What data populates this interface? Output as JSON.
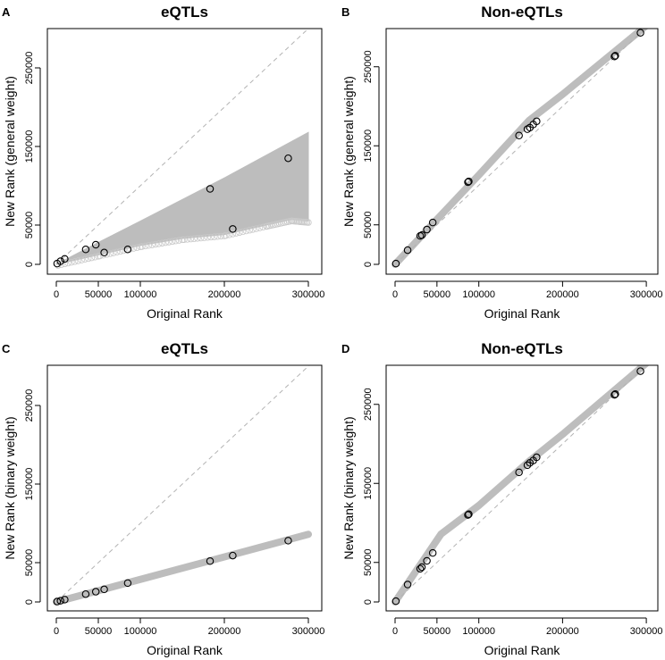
{
  "chart_data": [
    {
      "panel_letter": "A",
      "type": "scatter",
      "title": "eQTLs",
      "xlabel": "Original Rank",
      "ylabel": "New Rank (general weight)",
      "xlim": [
        0,
        300000
      ],
      "ylim": [
        0,
        300000
      ],
      "xticks": [
        0,
        50000,
        100000,
        200000,
        300000
      ],
      "xtick_labels": [
        "0",
        "50000",
        "100000",
        "200000",
        "300000"
      ],
      "yticks": [
        0,
        50000,
        150000,
        250000
      ],
      "ytick_labels": [
        "0",
        "50000",
        "150000",
        "250000"
      ],
      "background": {
        "type": "cloud",
        "upper": [
          [
            0,
            0
          ],
          [
            50000,
            28000
          ],
          [
            100000,
            55000
          ],
          [
            200000,
            110000
          ],
          [
            300000,
            168000
          ]
        ],
        "lower": [
          [
            300000,
            55000
          ],
          [
            280000,
            57000
          ],
          [
            250000,
            50000
          ],
          [
            200000,
            38000
          ],
          [
            150000,
            33000
          ],
          [
            100000,
            24000
          ],
          [
            50000,
            12000
          ],
          [
            0,
            0
          ]
        ]
      },
      "reference_line": "identity",
      "points": {
        "x": [
          1000,
          5000,
          10000,
          35000,
          47000,
          57000,
          85000,
          183000,
          210000,
          276000
        ],
        "y": [
          1000,
          4000,
          7000,
          19000,
          25000,
          15000,
          19000,
          96000,
          45000,
          135000
        ]
      }
    },
    {
      "panel_letter": "B",
      "type": "scatter",
      "title": "Non-eQTLs",
      "xlabel": "Original Rank",
      "ylabel": "New Rank (general weight)",
      "xlim": [
        0,
        300000
      ],
      "ylim": [
        0,
        300000
      ],
      "xticks": [
        0,
        50000,
        100000,
        200000,
        300000
      ],
      "xtick_labels": [
        "0",
        "50000",
        "100000",
        "200000",
        "300000"
      ],
      "yticks": [
        0,
        50000,
        150000,
        250000
      ],
      "ytick_labels": [
        "0",
        "50000",
        "150000",
        "250000"
      ],
      "background": {
        "type": "band",
        "path": [
          [
            0,
            0
          ],
          [
            50000,
            57000
          ],
          [
            100000,
            113000
          ],
          [
            160000,
            182000
          ],
          [
            200000,
            215000
          ],
          [
            300000,
            302000
          ]
        ]
      },
      "reference_line": "identity",
      "points": {
        "x": [
          1000,
          15000,
          30000,
          32000,
          38000,
          45000,
          87000,
          88000,
          148000,
          158000,
          161000,
          165000,
          169000,
          262000,
          263000,
          293000
        ],
        "y": [
          1000,
          18000,
          36000,
          37000,
          44000,
          53000,
          104000,
          105000,
          163000,
          171000,
          173000,
          177000,
          181000,
          263000,
          264000,
          293000
        ]
      }
    },
    {
      "panel_letter": "C",
      "type": "scatter",
      "title": "eQTLs",
      "xlabel": "Original Rank",
      "ylabel": "New Rank (binary weight)",
      "xlim": [
        0,
        300000
      ],
      "ylim": [
        0,
        300000
      ],
      "xticks": [
        0,
        50000,
        100000,
        200000,
        300000
      ],
      "xtick_labels": [
        "0",
        "50000",
        "100000",
        "200000",
        "300000"
      ],
      "yticks": [
        0,
        50000,
        150000,
        250000
      ],
      "ytick_labels": [
        "0",
        "50000",
        "150000",
        "250000"
      ],
      "background": {
        "type": "band",
        "path": [
          [
            0,
            0
          ],
          [
            300000,
            86000
          ]
        ]
      },
      "reference_line": "identity",
      "points": {
        "x": [
          1000,
          5000,
          10000,
          35000,
          47000,
          57000,
          85000,
          183000,
          210000,
          276000
        ],
        "y": [
          500,
          1500,
          3000,
          10000,
          13000,
          16000,
          24000,
          52000,
          59000,
          78000
        ]
      }
    },
    {
      "panel_letter": "D",
      "type": "scatter",
      "title": "Non-eQTLs",
      "xlabel": "Original Rank",
      "ylabel": "New Rank (binary weight)",
      "xlim": [
        0,
        300000
      ],
      "ylim": [
        0,
        300000
      ],
      "xticks": [
        0,
        50000,
        100000,
        200000,
        300000
      ],
      "xtick_labels": [
        "0",
        "50000",
        "100000",
        "200000",
        "300000"
      ],
      "yticks": [
        0,
        50000,
        150000,
        250000
      ],
      "ytick_labels": [
        "0",
        "50000",
        "150000",
        "250000"
      ],
      "background": {
        "type": "band",
        "path": [
          [
            0,
            0
          ],
          [
            55000,
            86000
          ],
          [
            100000,
            122000
          ],
          [
            160000,
            178000
          ],
          [
            200000,
            212000
          ],
          [
            300000,
            302000
          ]
        ]
      },
      "reference_line": "identity",
      "points": {
        "x": [
          1000,
          15000,
          30000,
          32000,
          38000,
          45000,
          87000,
          88000,
          148000,
          158000,
          161000,
          165000,
          169000,
          262000,
          263000,
          293000
        ],
        "y": [
          1000,
          22000,
          42000,
          44000,
          52000,
          62000,
          110000,
          111000,
          164000,
          173000,
          176000,
          179000,
          183000,
          262000,
          263000,
          292000
        ]
      }
    }
  ]
}
